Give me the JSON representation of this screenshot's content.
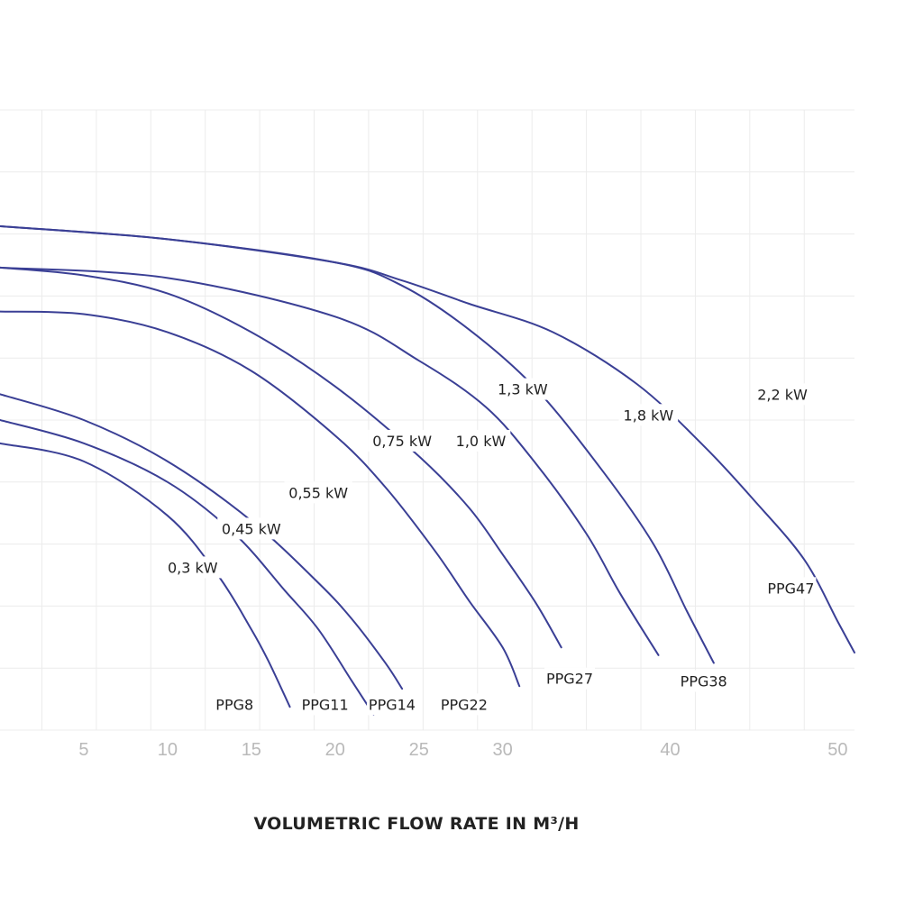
{
  "colors": {
    "curve": "#3a3f95",
    "grid": "#ececec",
    "tick_text": "#b9b9b9",
    "label_text": "#222222"
  },
  "chart_data": {
    "type": "line",
    "title": "",
    "xlabel": "VOLUMETRIC FLOW RATE IN M³/H",
    "ylabel": "",
    "xlim": [
      0,
      51
    ],
    "ylim": [
      0,
      24
    ],
    "x_tick_labels": [
      "5",
      "10",
      "15",
      "20",
      "25",
      "30",
      "40",
      "50"
    ],
    "grid": true,
    "series": [
      {
        "name": "PPG8",
        "power": "0,3 kW",
        "points": [
          [
            0,
            11.1
          ],
          [
            5,
            10.4
          ],
          [
            10,
            8.3
          ],
          [
            13,
            6.0
          ],
          [
            15,
            3.9
          ],
          [
            16,
            2.7
          ],
          [
            17.3,
            0.9
          ]
        ]
      },
      {
        "name": "PPG11",
        "power": "0,45 kW",
        "points": [
          [
            0,
            12.0
          ],
          [
            5,
            11.1
          ],
          [
            10,
            9.6
          ],
          [
            14,
            7.6
          ],
          [
            17,
            5.4
          ],
          [
            19,
            3.9
          ],
          [
            21,
            1.9
          ],
          [
            22.3,
            0.6
          ]
        ]
      },
      {
        "name": "PPG14",
        "power": "0,55 kW",
        "points": [
          [
            0,
            13.0
          ],
          [
            5,
            12.0
          ],
          [
            10,
            10.4
          ],
          [
            15,
            8.1
          ],
          [
            19,
            5.7
          ],
          [
            21,
            4.3
          ],
          [
            23,
            2.6
          ],
          [
            24,
            1.6
          ]
        ]
      },
      {
        "name": "PPG22",
        "power": "0,75 kW",
        "points": [
          [
            0,
            16.2
          ],
          [
            5,
            16.1
          ],
          [
            10,
            15.4
          ],
          [
            15,
            13.9
          ],
          [
            20,
            11.4
          ],
          [
            23,
            9.4
          ],
          [
            26,
            6.9
          ],
          [
            28,
            5.0
          ],
          [
            30,
            3.2
          ],
          [
            31,
            1.7
          ]
        ]
      },
      {
        "name": "PPG27",
        "power": "1,0 kW",
        "points": [
          [
            0,
            17.9
          ],
          [
            5,
            17.6
          ],
          [
            10,
            16.9
          ],
          [
            15,
            15.4
          ],
          [
            20,
            13.3
          ],
          [
            25,
            10.6
          ],
          [
            28,
            8.6
          ],
          [
            30,
            6.8
          ],
          [
            32,
            4.9
          ],
          [
            33.5,
            3.2
          ]
        ]
      },
      {
        "name": "PPG38",
        "power": "1,3 kW",
        "points": [
          [
            0,
            17.9
          ],
          [
            10,
            17.5
          ],
          [
            20,
            16.0
          ],
          [
            25,
            14.3
          ],
          [
            29,
            12.5
          ],
          [
            32,
            10.3
          ],
          [
            35,
            7.6
          ],
          [
            37,
            5.3
          ],
          [
            39.3,
            2.9
          ]
        ]
      },
      {
        "name": "PPG47",
        "power": "1,8 kW",
        "points": [
          [
            0,
            19.5
          ],
          [
            10,
            19.0
          ],
          [
            20,
            18.1
          ],
          [
            24,
            17.2
          ],
          [
            28,
            15.5
          ],
          [
            32,
            13.2
          ],
          [
            36,
            10.0
          ],
          [
            39,
            7.2
          ],
          [
            41,
            4.6
          ],
          [
            42.6,
            2.6
          ]
        ]
      },
      {
        "name": "",
        "power": "2,2 kW",
        "points": [
          [
            0,
            19.5
          ],
          [
            10,
            19.0
          ],
          [
            20,
            18.1
          ],
          [
            24,
            17.4
          ],
          [
            28,
            16.5
          ],
          [
            33,
            15.4
          ],
          [
            38,
            13.4
          ],
          [
            42,
            11.0
          ],
          [
            45,
            8.9
          ],
          [
            48,
            6.6
          ],
          [
            50,
            4.2
          ],
          [
            51,
            3.0
          ]
        ]
      }
    ],
    "curve_labels": [
      {
        "text": "0,3 kW",
        "x": 11.5,
        "y": 6.3
      },
      {
        "text": "0,45 kW",
        "x": 15.0,
        "y": 7.8
      },
      {
        "text": "0,55 kW",
        "x": 19.0,
        "y": 9.2
      },
      {
        "text": "0,75 kW",
        "x": 24.0,
        "y": 11.2
      },
      {
        "text": "1,0 kW",
        "x": 28.7,
        "y": 11.2
      },
      {
        "text": "1,3 kW",
        "x": 31.2,
        "y": 13.2
      },
      {
        "text": "1,8 kW",
        "x": 38.7,
        "y": 12.2
      },
      {
        "text": "2,2 kW",
        "x": 46.7,
        "y": 13.0
      },
      {
        "text": "PPG8",
        "x": 14.0,
        "y": 1.0
      },
      {
        "text": "PPG11",
        "x": 19.4,
        "y": 1.0
      },
      {
        "text": "PPG14",
        "x": 23.4,
        "y": 1.0
      },
      {
        "text": "PPG22",
        "x": 27.7,
        "y": 1.0
      },
      {
        "text": "PPG27",
        "x": 34.0,
        "y": 2.0
      },
      {
        "text": "PPG38",
        "x": 42.0,
        "y": 1.9
      },
      {
        "text": "PPG47",
        "x": 47.2,
        "y": 5.5
      }
    ]
  }
}
